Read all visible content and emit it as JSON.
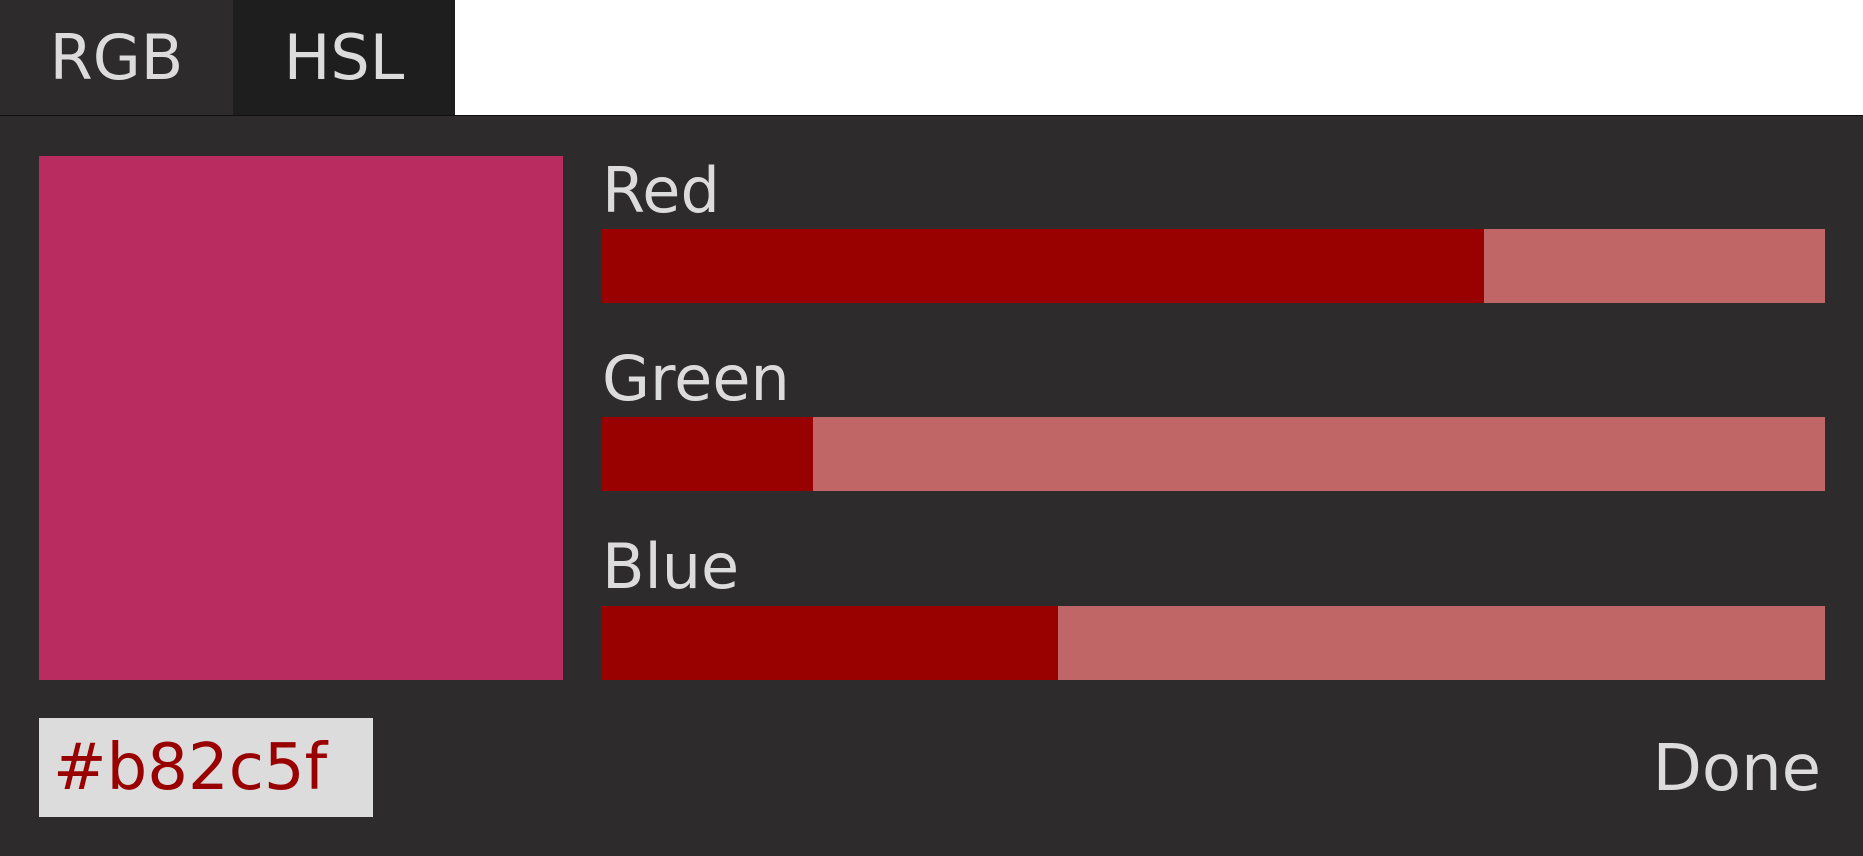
{
  "tabs": [
    {
      "label": "RGB",
      "active": true
    },
    {
      "label": "HSL",
      "active": false
    }
  ],
  "swatch": {
    "color": "#b82c5f"
  },
  "channels": [
    {
      "label": "Red",
      "value": 184,
      "max": 255
    },
    {
      "label": "Green",
      "value": 44,
      "max": 255
    },
    {
      "label": "Blue",
      "value": 95,
      "max": 255
    }
  ],
  "hex_input": {
    "value": "#b82c5f"
  },
  "done_button": {
    "label": "Done"
  },
  "colors": {
    "panel_bg": "#2d2b2c",
    "slider_fill": "#990000",
    "slider_track": "#c06666",
    "hex_text": "#990000",
    "text": "#dcdcdc"
  }
}
